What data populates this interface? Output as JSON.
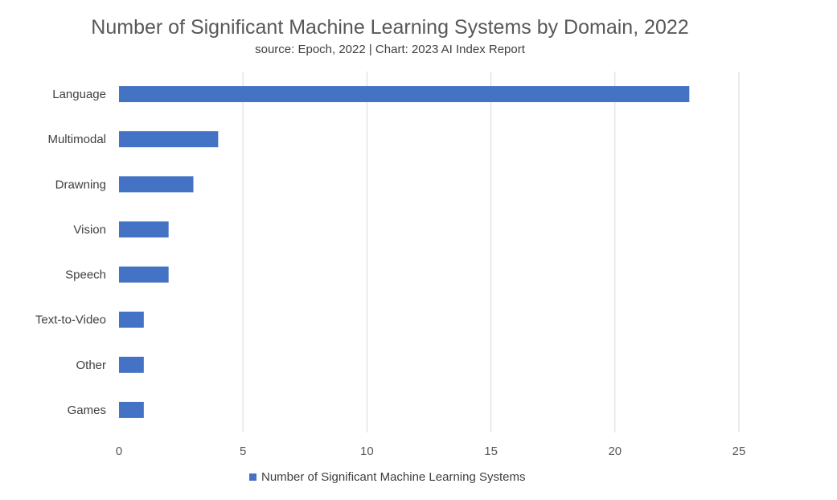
{
  "chart_data": {
    "type": "bar",
    "orientation": "horizontal",
    "title": "Number of Significant Machine Learning Systems by Domain, 2022",
    "subtitle": "source: Epoch, 2022 | Chart: 2023 AI Index Report",
    "categories": [
      "Language",
      "Multimodal",
      "Drawning",
      "Vision",
      "Speech",
      "Text-to-Video",
      "Other",
      "Games"
    ],
    "series": [
      {
        "name": "Number of Significant Machine Learning Systems",
        "values": [
          23,
          4,
          3,
          2,
          2,
          1,
          1,
          1
        ],
        "color": "#4472c4"
      }
    ],
    "xlim": [
      0,
      25
    ],
    "xticks": [
      0,
      5,
      10,
      15,
      20,
      25
    ],
    "grid": "vertical",
    "legend_position": "bottom"
  }
}
